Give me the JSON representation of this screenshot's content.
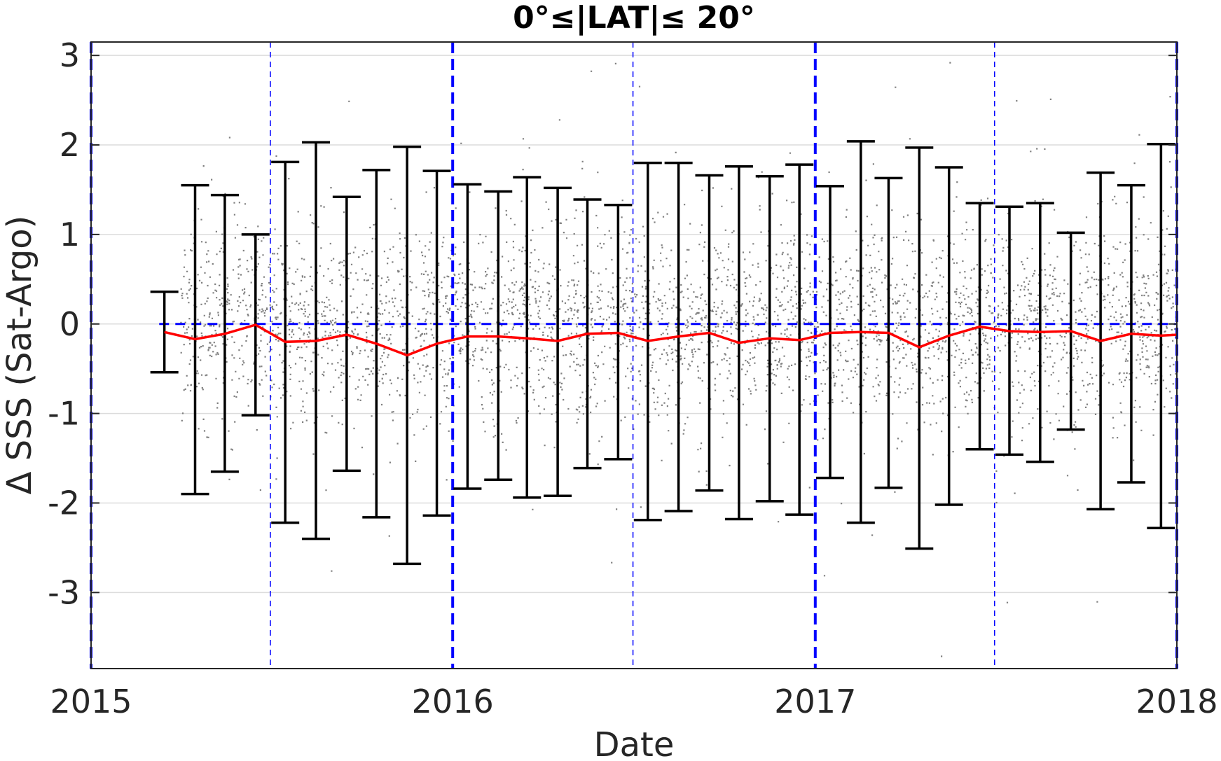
{
  "chart_data": {
    "type": "scatter",
    "title": "0°≤|LAT|≤ 20°",
    "xlabel": "Date",
    "ylabel": "Δ SSS (Sat-Argo)",
    "xlim": [
      "2015-01-01",
      "2018-01-01"
    ],
    "ylim": [
      -3.85,
      3.15
    ],
    "x_ticks": [
      "2015",
      "2016",
      "2017",
      "2018"
    ],
    "y_ticks": [
      3,
      2,
      1,
      0,
      -1,
      -2,
      -3
    ],
    "y_grid": true,
    "reference_line_y": 0,
    "year_lines": [
      "2015-01-01",
      "2016-01-01",
      "2017-01-01",
      "2018-01-01"
    ],
    "half_year_lines": [
      "2015-07-01",
      "2016-07-01",
      "2017-07-01"
    ],
    "scatter_extent": {
      "x": [
        "2015-04-01",
        "2018-01-01"
      ],
      "y_typical": [
        -0.9,
        0.9
      ]
    },
    "series": [
      {
        "kind": "mean-line",
        "x": [
          "2015-03-16",
          "2015-04-16",
          "2015-05-16",
          "2015-06-16",
          "2015-07-16",
          "2015-08-16",
          "2015-09-16",
          "2015-10-16",
          "2015-11-16",
          "2015-12-16",
          "2016-01-16",
          "2016-02-16",
          "2016-03-16",
          "2016-04-16",
          "2016-05-16",
          "2016-06-16",
          "2016-07-16",
          "2016-08-16",
          "2016-09-16",
          "2016-10-16",
          "2016-11-16",
          "2016-12-16",
          "2017-01-16",
          "2017-02-16",
          "2017-03-16",
          "2017-04-16",
          "2017-05-16",
          "2017-06-16",
          "2017-07-16",
          "2017-08-16",
          "2017-09-16",
          "2017-10-16",
          "2017-11-16",
          "2017-12-16",
          "2018-01-01"
        ],
        "values": [
          -0.09,
          -0.17,
          -0.11,
          -0.01,
          -0.2,
          -0.19,
          -0.12,
          -0.22,
          -0.35,
          -0.22,
          -0.14,
          -0.14,
          -0.16,
          -0.19,
          -0.11,
          -0.1,
          -0.19,
          -0.14,
          -0.1,
          -0.21,
          -0.16,
          -0.18,
          -0.1,
          -0.09,
          -0.1,
          -0.26,
          -0.13,
          -0.03,
          -0.08,
          -0.09,
          -0.08,
          -0.19,
          -0.11,
          -0.13,
          -0.12
        ]
      },
      {
        "kind": "error-bars",
        "x": [
          "2015-03-16",
          "2015-04-16",
          "2015-05-16",
          "2015-06-16",
          "2015-07-16",
          "2015-08-16",
          "2015-09-16",
          "2015-10-16",
          "2015-11-16",
          "2015-12-16",
          "2016-01-16",
          "2016-02-16",
          "2016-03-16",
          "2016-04-16",
          "2016-05-16",
          "2016-06-16",
          "2016-07-16",
          "2016-08-16",
          "2016-09-16",
          "2016-10-16",
          "2016-11-16",
          "2016-12-16",
          "2017-01-16",
          "2017-02-16",
          "2017-03-16",
          "2017-04-16",
          "2017-05-16",
          "2017-06-16",
          "2017-07-16",
          "2017-08-16",
          "2017-09-16",
          "2017-10-16",
          "2017-11-16",
          "2017-12-16"
        ],
        "upper": [
          0.36,
          1.55,
          1.44,
          1.0,
          1.81,
          2.03,
          1.42,
          1.72,
          1.98,
          1.71,
          1.56,
          1.48,
          1.64,
          1.52,
          1.39,
          1.33,
          1.8,
          1.8,
          1.66,
          1.76,
          1.65,
          1.78,
          1.54,
          2.04,
          1.63,
          1.97,
          1.75,
          1.35,
          1.31,
          1.35,
          1.02,
          1.69,
          1.55,
          2.01
        ],
        "lower": [
          -0.54,
          -1.9,
          -1.65,
          -1.02,
          -2.22,
          -2.4,
          -1.64,
          -2.16,
          -2.68,
          -2.14,
          -1.84,
          -1.74,
          -1.94,
          -1.92,
          -1.61,
          -1.51,
          -2.19,
          -2.09,
          -1.86,
          -2.18,
          -1.98,
          -2.13,
          -1.72,
          -2.22,
          -1.83,
          -2.51,
          -2.02,
          -1.4,
          -1.46,
          -1.54,
          -1.18,
          -2.07,
          -1.77,
          -2.28
        ]
      }
    ],
    "colors": {
      "scatter": "#808080",
      "mean_line": "#ff0000",
      "error_bars": "#000000",
      "reference_lines": "#0000ff",
      "grid": "#dcdcdc"
    }
  }
}
